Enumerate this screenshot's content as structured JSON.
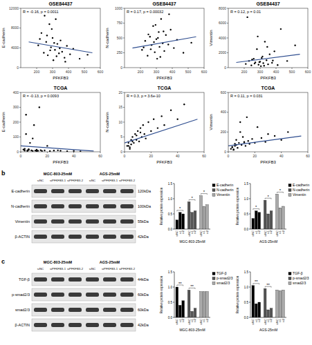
{
  "chart_data": [
    {
      "type": "scatter",
      "title": "GSE84437",
      "x_label": "PFKFB3",
      "y_label": "E-cadherin",
      "annotation": "R = -0.16, p = 0.0011",
      "grid": false,
      "xlim": [
        100,
        600
      ],
      "xticks": [
        200,
        300,
        400,
        500,
        600
      ],
      "ylim": [
        0,
        12000
      ],
      "yticks": [
        0,
        4000,
        8000,
        12000
      ],
      "series": [
        {
          "type": "scatter",
          "color": "#000000",
          "x": [
            210,
            230,
            245,
            260,
            270,
            280,
            290,
            300,
            305,
            315,
            320,
            330,
            340,
            350,
            360,
            375,
            390,
            410,
            430,
            470,
            250,
            265,
            285,
            295,
            310,
            325,
            345,
            220,
            380,
            520
          ],
          "values": [
            4500,
            7000,
            3000,
            5200,
            2500,
            8800,
            4100,
            6000,
            1500,
            3600,
            9800,
            4800,
            2900,
            5500,
            3200,
            2000,
            4400,
            2700,
            3800,
            1800,
            10500,
            6500,
            3500,
            7800,
            5000,
            2300,
            3900,
            5800,
            1200,
            2600
          ]
        },
        {
          "type": "line",
          "color": "#2e4d8f",
          "x": [
            150,
            550
          ],
          "values": [
            5200,
            3000
          ]
        }
      ]
    },
    {
      "type": "scatter",
      "title": "GSE84437",
      "x_label": "PFKFB3",
      "y_label": "N-cadherin",
      "annotation": "R = 0.17, p = 0.00032",
      "grid": false,
      "xlim": [
        100,
        600
      ],
      "xticks": [
        200,
        300,
        400,
        500,
        600
      ],
      "ylim": [
        0,
        1000
      ],
      "yticks": [
        0,
        250,
        500,
        750,
        1000
      ],
      "series": [
        {
          "type": "scatter",
          "color": "#000000",
          "x": [
            210,
            230,
            245,
            260,
            270,
            280,
            290,
            300,
            305,
            315,
            320,
            330,
            340,
            350,
            360,
            375,
            390,
            410,
            430,
            470,
            250,
            265,
            285,
            295,
            310,
            325,
            345,
            220,
            380,
            520
          ],
          "values": [
            300,
            450,
            200,
            520,
            380,
            700,
            260,
            480,
            150,
            600,
            350,
            820,
            410,
            280,
            550,
            390,
            640,
            330,
            470,
            250,
            560,
            310,
            430,
            720,
            500,
            180,
            610,
            340,
            900,
            420
          ]
        },
        {
          "type": "line",
          "color": "#2e4d8f",
          "x": [
            150,
            550
          ],
          "values": [
            330,
            520
          ]
        }
      ]
    },
    {
      "type": "scatter",
      "title": "GSE84437",
      "x_label": "PFKFB3",
      "y_label": "Vimentin",
      "annotation": "R = 0.12, p = 0.01",
      "grid": false,
      "xlim": [
        100,
        600
      ],
      "xticks": [
        200,
        300,
        400,
        500,
        600
      ],
      "ylim": [
        0,
        8000
      ],
      "yticks": [
        0,
        2000,
        4000,
        6000,
        8000
      ],
      "series": [
        {
          "type": "scatter",
          "color": "#000000",
          "x": [
            210,
            230,
            245,
            260,
            270,
            280,
            290,
            300,
            305,
            315,
            320,
            330,
            340,
            350,
            360,
            375,
            390,
            410,
            430,
            470,
            250,
            265,
            285,
            295,
            310,
            325,
            345,
            220,
            380,
            520
          ],
          "values": [
            500,
            900,
            300,
            1200,
            700,
            2500,
            400,
            800,
            200,
            1500,
            600,
            3500,
            1000,
            450,
            1800,
            650,
            2200,
            350,
            5200,
            900,
            1100,
            550,
            4200,
            750,
            1300,
            250,
            2800,
            6800,
            950,
            3000
          ]
        },
        {
          "type": "line",
          "color": "#2e4d8f",
          "x": [
            150,
            550
          ],
          "values": [
            700,
            1800
          ]
        }
      ]
    },
    {
      "type": "scatter",
      "title": "TCGA",
      "x_label": "PFKFB3",
      "y_label": "E-cadherin",
      "annotation": "R = -0.13, p = 0.0093",
      "grid": false,
      "xlim": [
        0,
        60
      ],
      "xticks": [
        0,
        20,
        40,
        60
      ],
      "ylim": [
        0,
        400
      ],
      "yticks": [
        0,
        100,
        200,
        300,
        400
      ],
      "series": [
        {
          "type": "scatter",
          "color": "#000000",
          "x": [
            2,
            3,
            4,
            5,
            5,
            6,
            7,
            8,
            9,
            10,
            11,
            12,
            13,
            14,
            15,
            16,
            18,
            20,
            22,
            25,
            28,
            30,
            35,
            40,
            45,
            4,
            6,
            9,
            12,
            3
          ],
          "values": [
            15,
            8,
            120,
            10,
            5,
            12,
            60,
            9,
            6,
            180,
            8,
            14,
            7,
            300,
            11,
            6,
            9,
            40,
            5,
            8,
            10,
            7,
            4,
            6,
            3,
            250,
            18,
            90,
            5,
            20
          ]
        },
        {
          "type": "line",
          "color": "#2e4d8f",
          "x": [
            0,
            55
          ],
          "values": [
            40,
            5
          ]
        }
      ]
    },
    {
      "type": "scatter",
      "title": "TCGA",
      "x_label": "PFKFB3",
      "y_label": "N-cadherin",
      "annotation": "R = 0.3, p = 3.6e-10",
      "grid": false,
      "xlim": [
        0,
        60
      ],
      "xticks": [
        0,
        20,
        40,
        60
      ],
      "ylim": [
        0,
        20
      ],
      "yticks": [
        0,
        5,
        10,
        15,
        20
      ],
      "series": [
        {
          "type": "scatter",
          "color": "#000000",
          "x": [
            2,
            3,
            4,
            5,
            5,
            6,
            7,
            8,
            9,
            10,
            11,
            12,
            13,
            14,
            15,
            16,
            18,
            20,
            22,
            25,
            28,
            30,
            35,
            40,
            45,
            4,
            6,
            9,
            12,
            3
          ],
          "values": [
            2,
            3,
            1.5,
            4,
            2.5,
            5,
            3,
            6,
            4,
            7,
            3.5,
            8,
            5,
            9,
            6,
            4.5,
            10,
            7,
            11,
            8,
            12,
            9,
            14,
            11,
            16,
            1,
            3.5,
            5.5,
            6.5,
            2
          ]
        },
        {
          "type": "line",
          "color": "#2e4d8f",
          "x": [
            0,
            55
          ],
          "values": [
            3,
            11
          ]
        }
      ]
    },
    {
      "type": "scatter",
      "title": "TCGA",
      "x_label": "PFKFB3",
      "y_label": "Vimentin",
      "annotation": "R = 0.11, p = 0.031",
      "grid": false,
      "xlim": [
        0,
        60
      ],
      "xticks": [
        0,
        20,
        40,
        60
      ],
      "ylim": [
        0,
        600
      ],
      "yticks": [
        0,
        200,
        400,
        600
      ],
      "series": [
        {
          "type": "scatter",
          "color": "#000000",
          "x": [
            2,
            3,
            4,
            5,
            5,
            6,
            7,
            8,
            9,
            10,
            11,
            12,
            13,
            14,
            15,
            16,
            18,
            20,
            22,
            25,
            28,
            30,
            35,
            40,
            45,
            4,
            6,
            9,
            12,
            3
          ],
          "values": [
            30,
            50,
            20,
            80,
            60,
            120,
            40,
            90,
            200,
            70,
            150,
            100,
            60,
            350,
            110,
            80,
            130,
            90,
            250,
            140,
            100,
            180,
            160,
            120,
            200,
            25,
            70,
            300,
            95,
            45
          ]
        },
        {
          "type": "line",
          "color": "#2e4d8f",
          "x": [
            0,
            55
          ],
          "values": [
            60,
            160
          ]
        }
      ]
    },
    {
      "type": "bar",
      "title": "MGC-803-25mM",
      "y_label": "Relative protein expression",
      "categories": [
        "siNC",
        "si1",
        "si2"
      ],
      "legend": "right",
      "ylim": [
        0,
        1.5
      ],
      "yticks": [
        {
          "value": 0,
          "label": "0.0"
        },
        {
          "value": 0.5,
          "label": "0.5"
        },
        {
          "value": 1,
          "label": "1.0"
        },
        {
          "value": 1.5,
          "label": "1.5"
        }
      ],
      "series": [
        {
          "name": "E-cadherin",
          "color": "#000000",
          "values": [
            0.3,
            0.55,
            0.5
          ]
        },
        {
          "name": "N-cadherin",
          "color": "#555555",
          "values": [
            0.9,
            0.55,
            0.6
          ]
        },
        {
          "name": "Vimentin",
          "color": "#aaaaaa",
          "values": [
            1.1,
            0.75,
            0.8
          ]
        }
      ],
      "annotations": [
        {
          "series": 0,
          "text": "*"
        },
        {
          "series": 1,
          "text": "*"
        },
        {
          "series": 2,
          "text": "*"
        }
      ]
    },
    {
      "type": "bar",
      "title": "AGS-25mM",
      "y_label": "Relative protein expression",
      "categories": [
        "siNC",
        "si1",
        "si2"
      ],
      "legend": "right",
      "ylim": [
        0,
        1.5
      ],
      "yticks": [
        {
          "value": 0,
          "label": "0.0"
        },
        {
          "value": 0.5,
          "label": "0.5"
        },
        {
          "value": 1,
          "label": "1.0"
        },
        {
          "value": 1.5,
          "label": "1.5"
        }
      ],
      "series": [
        {
          "name": "E-cadherin",
          "color": "#000000",
          "values": [
            0.35,
            0.6,
            0.55
          ]
        },
        {
          "name": "N-cadherin",
          "color": "#555555",
          "values": [
            0.95,
            0.5,
            0.6
          ]
        },
        {
          "name": "Vimentin",
          "color": "#aaaaaa",
          "values": [
            1.15,
            0.7,
            0.75
          ]
        }
      ],
      "annotations": [
        {
          "series": 0,
          "text": "*"
        },
        {
          "series": 1,
          "text": "*"
        },
        {
          "series": 2,
          "text": "*"
        }
      ]
    },
    {
      "type": "bar",
      "title": "MGC-803-25mM",
      "y_label": "Relative protein expression",
      "categories": [
        "siNC",
        "si1",
        "si2"
      ],
      "legend": "right",
      "ylim": [
        0,
        1.5
      ],
      "yticks": [
        {
          "value": 0,
          "label": "0.0"
        },
        {
          "value": 0.5,
          "label": "0.5"
        },
        {
          "value": 1,
          "label": "1.0"
        },
        {
          "value": 1.5,
          "label": "1.5"
        }
      ],
      "series": [
        {
          "name": "TGF-β",
          "color": "#000000",
          "values": [
            1.0,
            0.4,
            0.55
          ]
        },
        {
          "name": "p-smad2/3",
          "color": "#555555",
          "values": [
            0.9,
            0.2,
            0.3
          ]
        },
        {
          "name": "smad2/3",
          "color": "#aaaaaa",
          "values": [
            0.85,
            0.85,
            0.85
          ]
        }
      ],
      "annotations": [
        {
          "series": 0,
          "text": "**"
        },
        {
          "series": 1,
          "text": "**"
        }
      ]
    },
    {
      "type": "bar",
      "title": "AGS-25mM",
      "y_label": "Relative protein expression",
      "categories": [
        "siNC",
        "si1",
        "si2"
      ],
      "legend": "right",
      "ylim": [
        0,
        1.5
      ],
      "yticks": [
        {
          "value": 0,
          "label": "0.0"
        },
        {
          "value": 0.5,
          "label": "0.5"
        },
        {
          "value": 1,
          "label": "1.0"
        },
        {
          "value": 1.5,
          "label": "1.5"
        }
      ],
      "series": [
        {
          "name": "TGF-β",
          "color": "#000000",
          "values": [
            1.05,
            0.45,
            0.5
          ]
        },
        {
          "name": "p-smad2/3",
          "color": "#555555",
          "values": [
            0.95,
            0.25,
            0.3
          ]
        },
        {
          "name": "smad2/3",
          "color": "#aaaaaa",
          "values": [
            0.9,
            0.88,
            0.9
          ]
        }
      ],
      "annotations": [
        {
          "series": 0,
          "text": "**"
        },
        {
          "series": 1,
          "text": "**"
        }
      ]
    }
  ],
  "panel_labels": [
    "b",
    "c"
  ],
  "blots": [
    {
      "lines": [
        "MGC-803-25mM",
        "AGS-25mM"
      ],
      "lanes": [
        "siNC",
        "siPFKFB3-1",
        "siPFKFB3-2"
      ],
      "rows": [
        {
          "protein": "E-cadherin",
          "size": "120kDa"
        },
        {
          "protein": "N-cadherin",
          "size": "100kDa"
        },
        {
          "protein": "Vimentin",
          "size": "55kDa"
        },
        {
          "protein": "β-ACTIN",
          "size": "42kDa"
        }
      ]
    },
    {
      "lines": [
        "MGC-803-25mM",
        "AGS-25mM"
      ],
      "lanes": [
        "siNC",
        "siPFKFB3-1",
        "siPFKFB3-2"
      ],
      "rows": [
        {
          "protein": "TGF-β",
          "size": "44kDa"
        },
        {
          "protein": "p-smad2/3",
          "size": "60kDa"
        },
        {
          "protein": "smad2/3",
          "size": "60kDa"
        },
        {
          "protein": "β-ACTIN",
          "size": "42kDa"
        }
      ]
    }
  ]
}
